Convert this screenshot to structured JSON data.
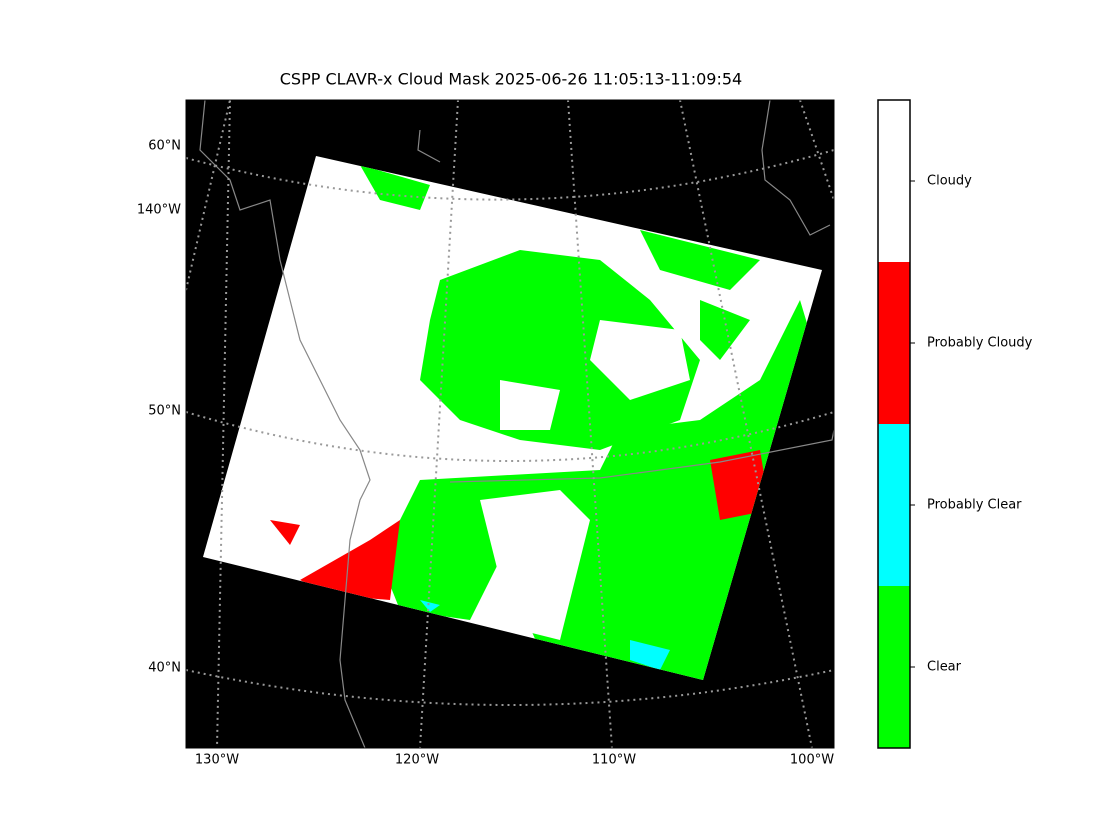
{
  "title": "CSPP CLAVR-x Cloud Mask 2025-06-26 11:05:13-11:09:54",
  "lat_labels": [
    "60°N",
    "140°W",
    "50°N",
    "40°N"
  ],
  "lon_labels": [
    "130°W",
    "120°W",
    "110°W",
    "100°W"
  ],
  "colorbar": [
    {
      "label": "Cloudy",
      "color": "#ffffff"
    },
    {
      "label": "Probably Cloudy",
      "color": "#ff0000"
    },
    {
      "label": "Probably Clear",
      "color": "#00ffff"
    },
    {
      "label": "Clear",
      "color": "#00ff00"
    }
  ]
}
